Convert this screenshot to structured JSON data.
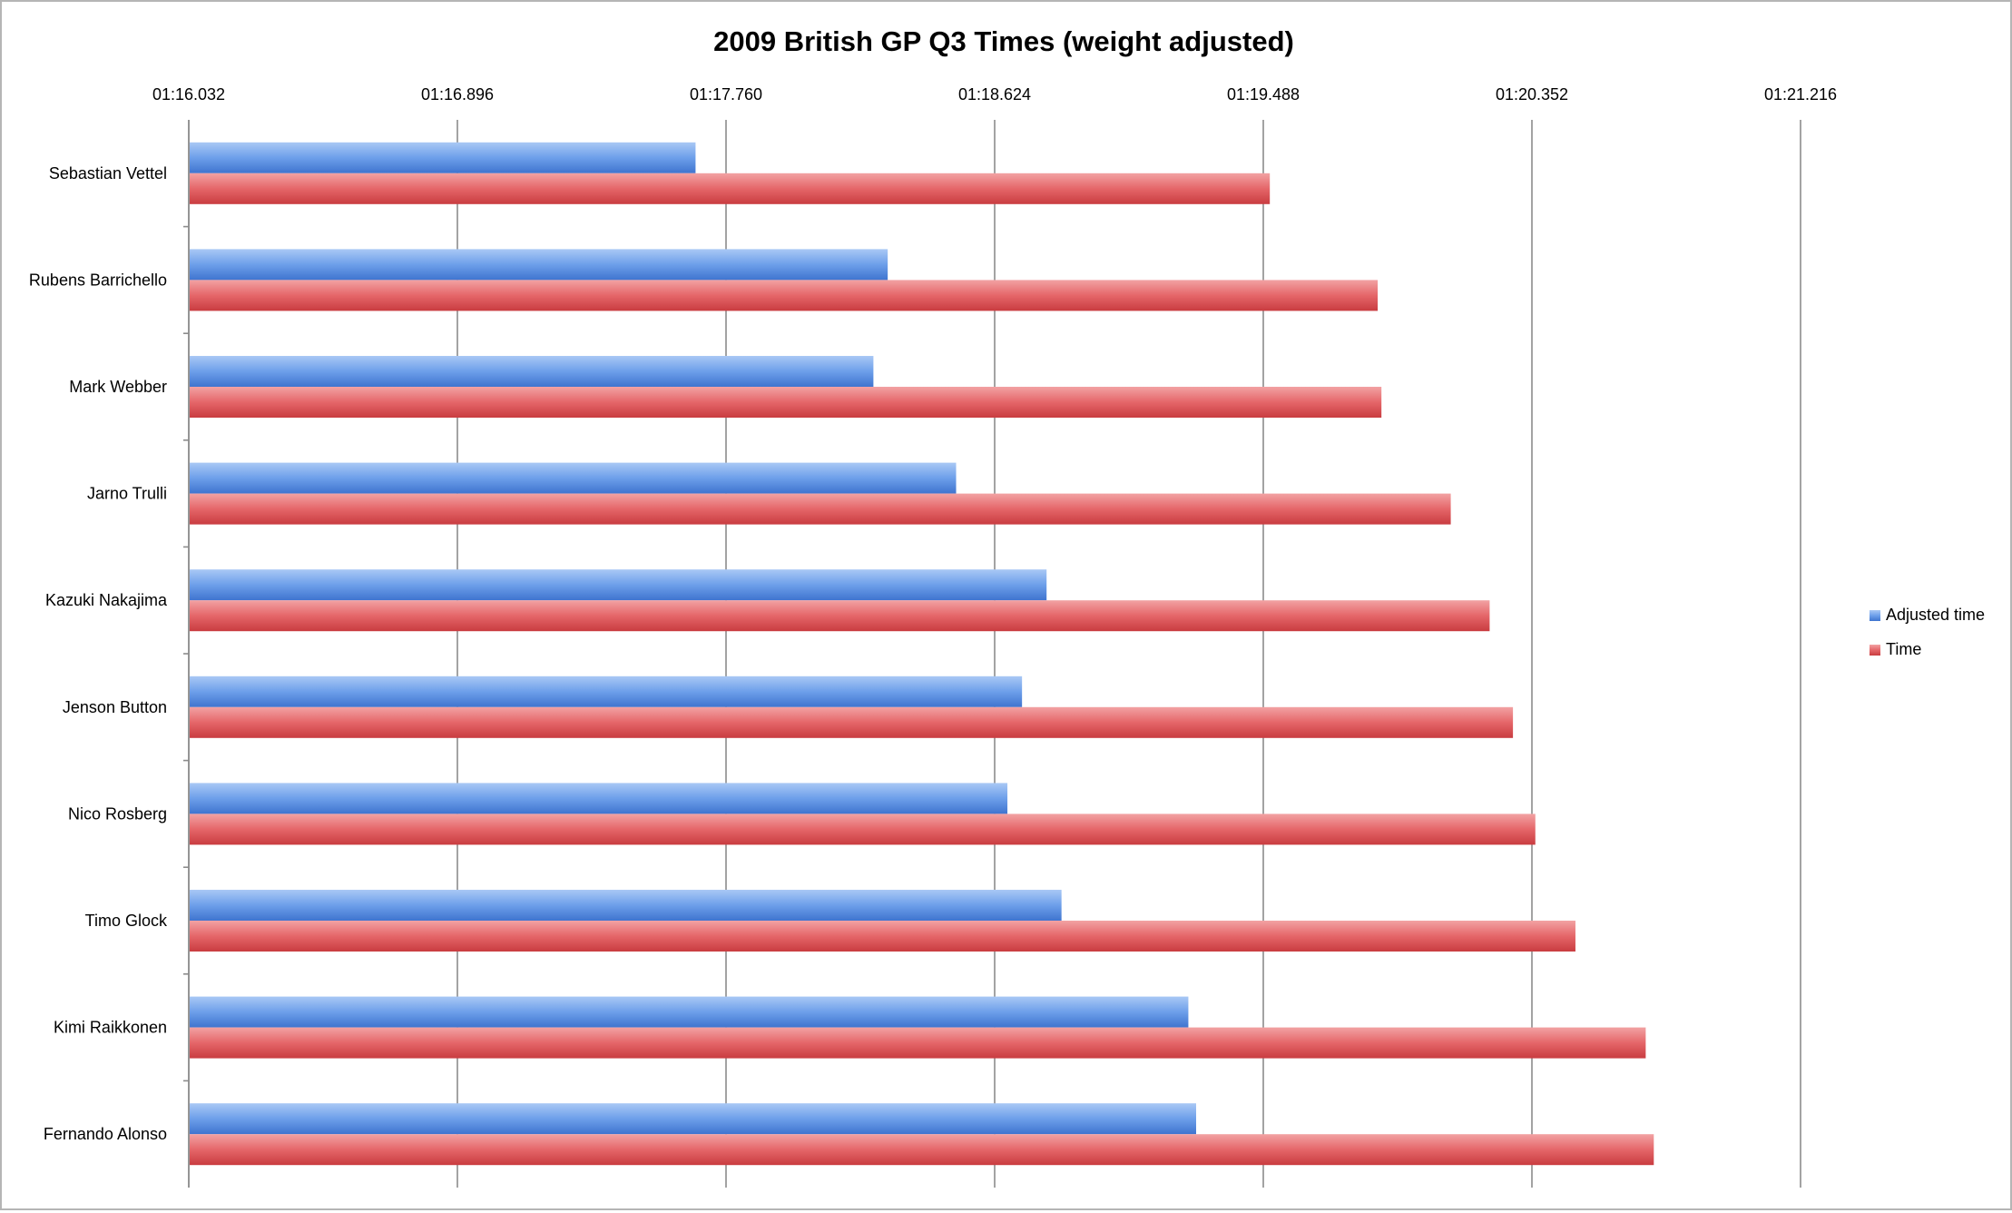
{
  "chart_data": {
    "type": "bar",
    "orientation": "horizontal",
    "title": "2009 British GP Q3 Times (weight adjusted)",
    "xlabel": "",
    "ylabel": "",
    "x_axis_position": "top",
    "x_range_seconds": [
      76.032,
      81.216
    ],
    "x_ticks": [
      "01:16.032",
      "01:16.896",
      "01:17.760",
      "01:18.624",
      "01:19.488",
      "01:20.352",
      "01:21.216"
    ],
    "x_tick_values_seconds": [
      76.032,
      76.896,
      77.76,
      78.624,
      79.488,
      80.352,
      81.216
    ],
    "grid": "vertical lines on",
    "legend_position": "right",
    "categories": [
      "Sebastian Vettel",
      "Rubens Barrichello",
      "Mark Webber",
      "Jarno Trulli",
      "Kazuki Nakajima",
      "Jenson Button",
      "Nico Rosberg",
      "Timo Glock",
      "Kimi Raikkonen",
      "Fernando Alonso"
    ],
    "series": [
      {
        "name": "Adjusted time",
        "color": "#5b8fe0",
        "values_seconds": [
          77.662,
          78.28,
          78.234,
          78.5,
          78.791,
          78.712,
          78.665,
          78.839,
          79.247,
          79.272
        ]
      },
      {
        "name": "Time",
        "color": "#e0575b",
        "values_seconds": [
          79.509,
          79.856,
          79.868,
          80.091,
          80.216,
          80.291,
          80.363,
          80.492,
          80.718,
          80.744
        ]
      }
    ]
  }
}
